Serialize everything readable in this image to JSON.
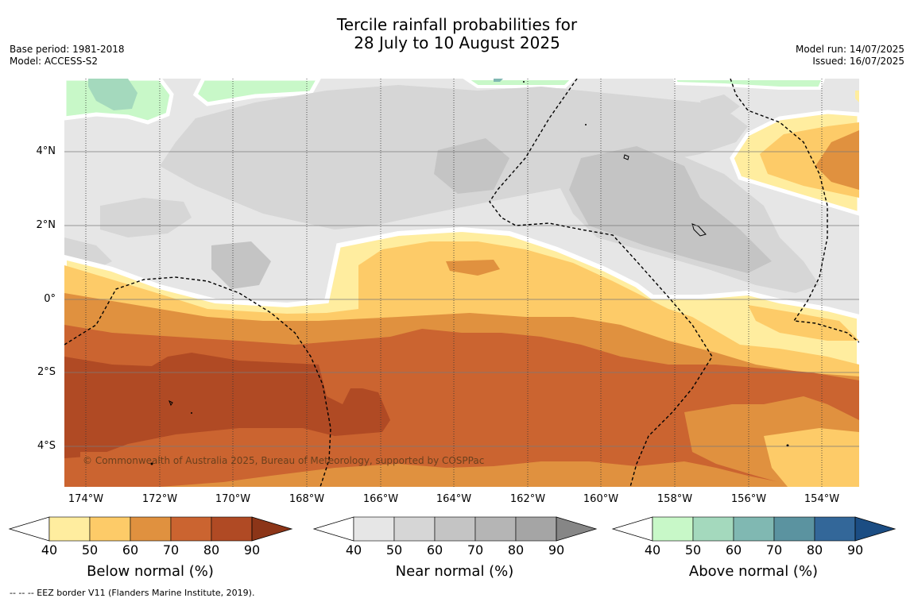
{
  "title": {
    "line1": "Tercile rainfall probabilities for",
    "line2": "28 July to 10 August 2025"
  },
  "meta_left": {
    "base_period": "Base period: 1981-2018",
    "model": "Model: ACCESS-S2"
  },
  "meta_right": {
    "model_run": "Model run: 14/07/2025",
    "issued": "Issued: 16/07/2025"
  },
  "map": {
    "lat_labels": [
      "4°N",
      "2°N",
      "0°",
      "2°S",
      "4°S"
    ],
    "lon_labels": [
      "174°W",
      "172°W",
      "170°W",
      "168°W",
      "166°W",
      "164°W",
      "162°W",
      "160°W",
      "158°W",
      "156°W",
      "154°W"
    ],
    "copyright": "© Commonwealth of Australia 2025, Bureau of Meteorology, supported by COSPPac"
  },
  "colorbars": [
    {
      "title": "Below normal (%)",
      "ticks": [
        "40",
        "50",
        "60",
        "70",
        "80",
        "90"
      ],
      "colors": [
        "#ffed9f",
        "#fdcb68",
        "#e0913f",
        "#cb6430",
        "#b04a24",
        "#8c3518"
      ]
    },
    {
      "title": "Near normal (%)",
      "ticks": [
        "40",
        "50",
        "60",
        "70",
        "80",
        "90"
      ],
      "colors": [
        "#e6e6e6",
        "#d6d6d6",
        "#c4c4c4",
        "#b5b5b5",
        "#a5a5a5",
        "#868686"
      ]
    },
    {
      "title": "Above normal (%)",
      "ticks": [
        "40",
        "50",
        "60",
        "70",
        "80",
        "90"
      ],
      "colors": [
        "#c8f8c8",
        "#a4d9bd",
        "#80b8b2",
        "#5b93a0",
        "#336799",
        "#1b4d83"
      ]
    }
  ],
  "footnote": "--  --  -- EEZ border V11 (Flanders Marine Institute, 2019)."
}
